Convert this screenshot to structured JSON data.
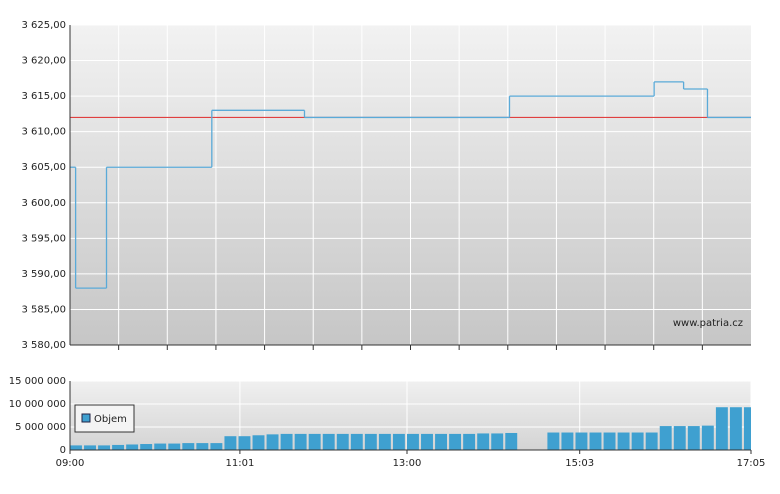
{
  "chart_data": [
    {
      "type": "step",
      "watermark": "www.patria.cz",
      "x": [
        540,
        544,
        566,
        641,
        707,
        853,
        956,
        977,
        994
      ],
      "series": [
        {
          "color": "#5aaad8",
          "values": [
            3605,
            3588,
            3605,
            3613,
            3612,
            3615,
            3617,
            3616,
            3612
          ]
        }
      ],
      "reference_line": {
        "value": 3612,
        "color": "#e04040"
      },
      "xlim": [
        540,
        1025
      ],
      "ylim": [
        3580,
        3625
      ],
      "yticks": [
        {
          "value": 3580,
          "label": "3 580,00"
        },
        {
          "value": 3585,
          "label": "3 585,00"
        },
        {
          "value": 3590,
          "label": "3 590,00"
        },
        {
          "value": 3595,
          "label": "3 595,00"
        },
        {
          "value": 3600,
          "label": "3 600,00"
        },
        {
          "value": 3605,
          "label": "3 605,00"
        },
        {
          "value": 3610,
          "label": "3 610,00"
        },
        {
          "value": 3615,
          "label": "3 615,00"
        },
        {
          "value": 3620,
          "label": "3 620,00"
        },
        {
          "value": 3625,
          "label": "3 625,00"
        }
      ],
      "grid": true
    },
    {
      "type": "bar",
      "legend": "upper left",
      "x": [
        540,
        550,
        560,
        570,
        580,
        590,
        600,
        610,
        620,
        630,
        640,
        650,
        660,
        670,
        680,
        690,
        700,
        710,
        720,
        730,
        740,
        750,
        760,
        770,
        780,
        790,
        800,
        810,
        820,
        830,
        840,
        850,
        860,
        870,
        880,
        890,
        900,
        910,
        920,
        930,
        940,
        950,
        960,
        970,
        980,
        990,
        1000,
        1010,
        1020
      ],
      "series": [
        {
          "name": "Objem",
          "color": "#3fa0d0",
          "values": [
            1000000,
            1000000,
            1000000,
            1100000,
            1200000,
            1300000,
            1400000,
            1400000,
            1500000,
            1500000,
            1500000,
            3000000,
            3000000,
            3200000,
            3400000,
            3500000,
            3500000,
            3500000,
            3500000,
            3500000,
            3500000,
            3500000,
            3500000,
            3500000,
            3500000,
            3500000,
            3500000,
            3500000,
            3500000,
            3600000,
            3600000,
            3700000,
            null,
            null,
            3800000,
            3800000,
            3800000,
            3800000,
            3800000,
            3800000,
            3800000,
            3800000,
            5200000,
            5200000,
            5200000,
            5300000,
            9300000,
            9300000,
            9300000
          ]
        }
      ],
      "xlim": [
        540,
        1025
      ],
      "ylim": [
        0,
        15000000
      ],
      "yticks": [
        0,
        {
          "value": 5000000,
          "label": "5 000 000"
        },
        {
          "value": 10000000,
          "label": "10 000 000"
        },
        {
          "value": 15000000,
          "label": "15 000 000"
        }
      ],
      "xticks": [
        {
          "value": 540,
          "label": "09:00"
        },
        {
          "value": 661,
          "label": "11:01"
        },
        {
          "value": 780,
          "label": "13:00"
        },
        {
          "value": 903,
          "label": "15:03"
        },
        {
          "value": 1025,
          "label": "17:05"
        }
      ],
      "grid": true
    }
  ]
}
